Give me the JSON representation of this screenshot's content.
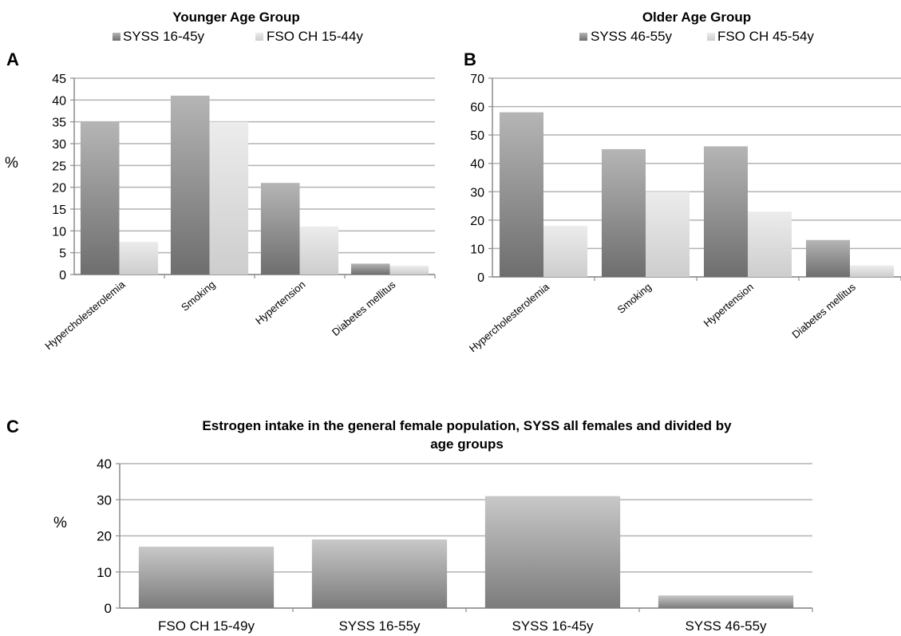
{
  "chart_data": [
    {
      "type": "bar",
      "panel": "A",
      "title": "Younger Age Group",
      "ylabel": "%",
      "ylim": [
        0,
        45
      ],
      "yticks": [
        0,
        5,
        10,
        15,
        20,
        25,
        30,
        35,
        40,
        45
      ],
      "grid": true,
      "legend_position": "top",
      "categories": [
        "Hypercholesterolemia",
        "Smoking",
        "Hypertension",
        "Diabetes mellitus"
      ],
      "series": [
        {
          "name": "SYSS 16-45y",
          "color": "#8a8a8a",
          "values": [
            35,
            41,
            21,
            2.5
          ]
        },
        {
          "name": "FSO CH 15-44y",
          "color": "#d6d6d6",
          "values": [
            7.5,
            35,
            11,
            2
          ]
        }
      ]
    },
    {
      "type": "bar",
      "panel": "B",
      "title": "Older Age Group",
      "ylabel": "",
      "ylim": [
        0,
        70
      ],
      "yticks": [
        0,
        10,
        20,
        30,
        40,
        50,
        60,
        70
      ],
      "grid": true,
      "legend_position": "top",
      "categories": [
        "Hypercholesterolemia",
        "Smoking",
        "Hypertension",
        "Diabetes mellitus"
      ],
      "series": [
        {
          "name": "SYSS 46-55y",
          "color": "#8a8a8a",
          "values": [
            58,
            45,
            46,
            13
          ]
        },
        {
          "name": "FSO CH 45-54y",
          "color": "#d6d6d6",
          "values": [
            18,
            30,
            23,
            4
          ]
        }
      ]
    },
    {
      "type": "bar",
      "panel": "C",
      "title": "Estrogen intake in the general female population, SYSS all females and divided by age groups",
      "title_lines": [
        "Estrogen intake in the general female population, SYSS all females and divided by",
        "age groups"
      ],
      "ylabel": "%",
      "ylim": [
        0,
        40
      ],
      "yticks": [
        0,
        10,
        20,
        30,
        40
      ],
      "grid": true,
      "categories": [
        "FSO CH 15-49y",
        "SYSS 16-55y",
        "SYSS 16-45y",
        "SYSS 46-55y"
      ],
      "series": [
        {
          "color": "#9a9a9a",
          "values": [
            17,
            19,
            31,
            3.5
          ]
        }
      ]
    }
  ]
}
